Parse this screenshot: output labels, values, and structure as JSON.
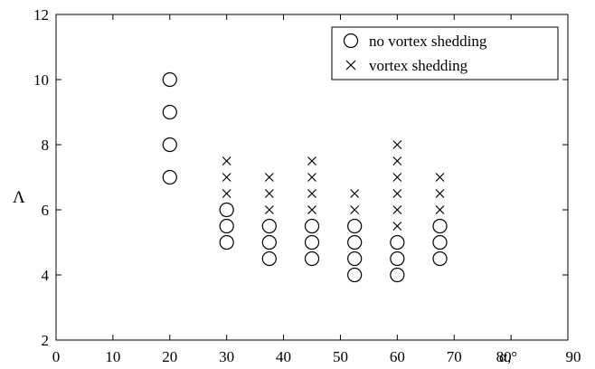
{
  "chart_data": {
    "type": "scatter",
    "xlabel": "α,°",
    "ylabel": "Λ",
    "xlim": [
      0,
      90
    ],
    "ylim": [
      2,
      12
    ],
    "xticks": [
      0,
      10,
      20,
      30,
      40,
      50,
      60,
      70,
      80,
      90
    ],
    "yticks": [
      2,
      4,
      6,
      8,
      10,
      12
    ],
    "grid": false,
    "legend_position": "top-right",
    "series": [
      {
        "name": "no vortex shedding",
        "marker": "circle",
        "points": [
          [
            20,
            7
          ],
          [
            20,
            8
          ],
          [
            20,
            9
          ],
          [
            20,
            10
          ],
          [
            30,
            5
          ],
          [
            30,
            5.5
          ],
          [
            30,
            6
          ],
          [
            37.5,
            4.5
          ],
          [
            37.5,
            5
          ],
          [
            37.5,
            5.5
          ],
          [
            45,
            4.5
          ],
          [
            45,
            5
          ],
          [
            45,
            5.5
          ],
          [
            52.5,
            4
          ],
          [
            52.5,
            4.5
          ],
          [
            52.5,
            5
          ],
          [
            52.5,
            5.5
          ],
          [
            60,
            4
          ],
          [
            60,
            4.5
          ],
          [
            60,
            5
          ],
          [
            67.5,
            4.5
          ],
          [
            67.5,
            5
          ],
          [
            67.5,
            5.5
          ]
        ]
      },
      {
        "name": "vortex shedding",
        "marker": "cross",
        "points": [
          [
            30,
            6.5
          ],
          [
            30,
            7
          ],
          [
            30,
            7.5
          ],
          [
            37.5,
            6
          ],
          [
            37.5,
            6.5
          ],
          [
            37.5,
            7
          ],
          [
            45,
            6
          ],
          [
            45,
            6.5
          ],
          [
            45,
            7
          ],
          [
            45,
            7.5
          ],
          [
            52.5,
            6
          ],
          [
            52.5,
            6.5
          ],
          [
            60,
            5.5
          ],
          [
            60,
            6
          ],
          [
            60,
            6.5
          ],
          [
            60,
            7
          ],
          [
            60,
            7.5
          ],
          [
            60,
            8
          ],
          [
            67.5,
            6
          ],
          [
            67.5,
            6.5
          ],
          [
            67.5,
            7
          ]
        ]
      }
    ]
  }
}
